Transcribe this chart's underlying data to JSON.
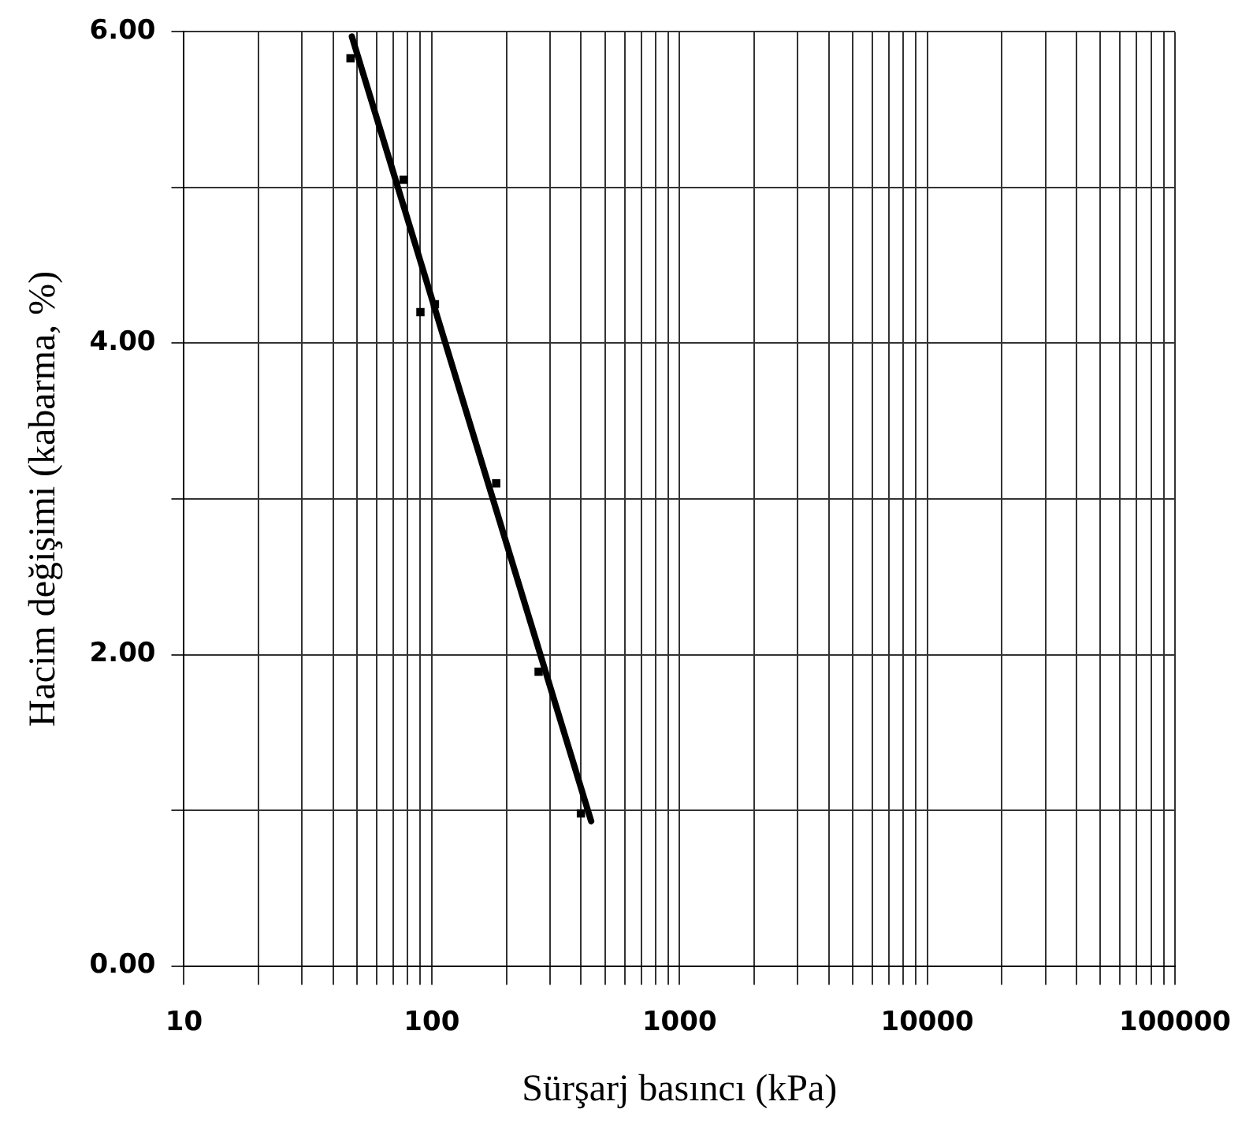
{
  "chart_data": {
    "type": "scatter",
    "xlabel": "Sürşarj basıncı (kPa)",
    "ylabel": "Hacim değişimi (kabarma, %)",
    "log": "x",
    "xlim": [
      10,
      100000
    ],
    "ylim": [
      0,
      6
    ],
    "xticks": [
      10,
      {
        "value": 20,
        "label": null
      },
      {
        "value": 30,
        "label": null
      },
      {
        "value": 40,
        "label": null
      },
      {
        "value": 50,
        "label": null
      },
      {
        "value": 60,
        "label": null
      },
      {
        "value": 70,
        "label": null
      },
      {
        "value": 80,
        "label": null
      },
      {
        "value": 90,
        "label": null
      },
      100,
      {
        "value": 200,
        "label": null
      },
      {
        "value": 300,
        "label": null
      },
      {
        "value": 400,
        "label": null
      },
      {
        "value": 500,
        "label": null
      },
      {
        "value": 600,
        "label": null
      },
      {
        "value": 700,
        "label": null
      },
      {
        "value": 800,
        "label": null
      },
      {
        "value": 900,
        "label": null
      },
      1000,
      {
        "value": 2000,
        "label": null
      },
      {
        "value": 3000,
        "label": null
      },
      {
        "value": 4000,
        "label": null
      },
      {
        "value": 5000,
        "label": null
      },
      {
        "value": 6000,
        "label": null
      },
      {
        "value": 7000,
        "label": null
      },
      {
        "value": 8000,
        "label": null
      },
      {
        "value": 9000,
        "label": null
      },
      10000,
      {
        "value": 20000,
        "label": null
      },
      {
        "value": 30000,
        "label": null
      },
      {
        "value": 40000,
        "label": null
      },
      {
        "value": 50000,
        "label": null
      },
      {
        "value": 60000,
        "label": null
      },
      {
        "value": 70000,
        "label": null
      },
      {
        "value": 80000,
        "label": null
      },
      {
        "value": 90000,
        "label": null
      },
      100000
    ],
    "yticks": [
      {
        "value": 0,
        "label": "0.00"
      },
      {
        "value": 1,
        "label": null
      },
      {
        "value": 2,
        "label": "2.00"
      },
      {
        "value": 3,
        "label": null
      },
      {
        "value": 4,
        "label": "4.00"
      },
      {
        "value": 5,
        "label": null
      },
      {
        "value": 6,
        "label": "6.00"
      }
    ],
    "grid": true,
    "legend": false,
    "marker": "square",
    "series": [
      {
        "type": "scatter",
        "color": "#000000",
        "x": [
          47,
          77,
          90,
          103,
          182,
          270,
          400
        ],
        "values": [
          5.83,
          5.05,
          4.2,
          4.25,
          3.1,
          1.89,
          0.98
        ]
      },
      {
        "type": "line",
        "color": "#000000",
        "marker": "none",
        "line_style": "solid",
        "x": [
          47.6,
          440
        ],
        "values": [
          5.97,
          0.93
        ]
      }
    ]
  }
}
